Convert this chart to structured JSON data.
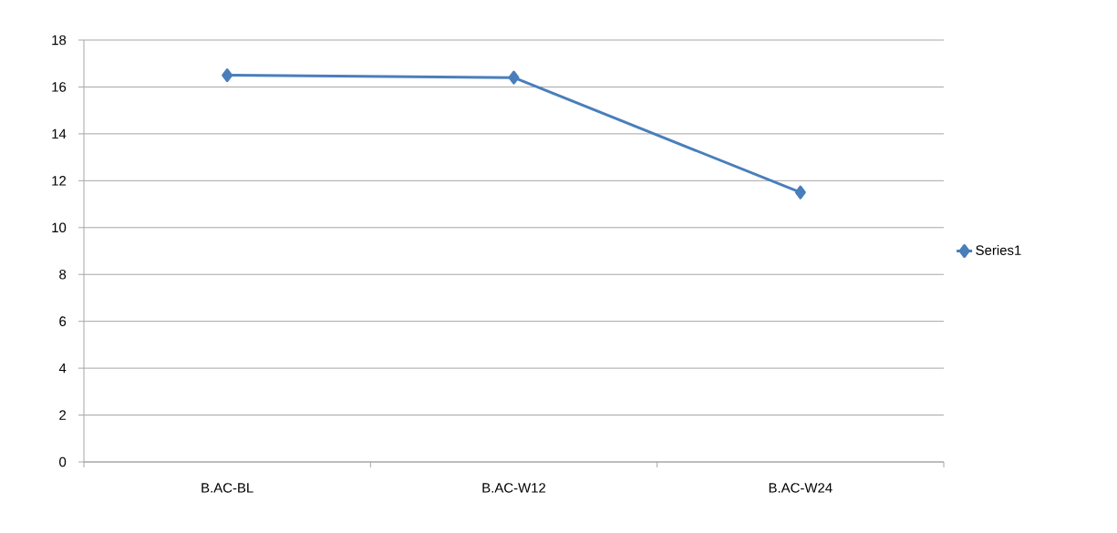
{
  "chart_data": {
    "type": "line",
    "categories": [
      "B.AC-BL",
      "B.AC-W12",
      "B.AC-W24"
    ],
    "series": [
      {
        "name": "Series1",
        "color": "#4a7ebb",
        "values": [
          16.5,
          16.4,
          11.5
        ]
      }
    ],
    "ylim": [
      0,
      18
    ],
    "yticks": [
      0,
      2,
      4,
      6,
      8,
      10,
      12,
      14,
      16,
      18
    ],
    "grid": "y",
    "legend": "right",
    "marker": "diamond",
    "line_style": "solid"
  }
}
